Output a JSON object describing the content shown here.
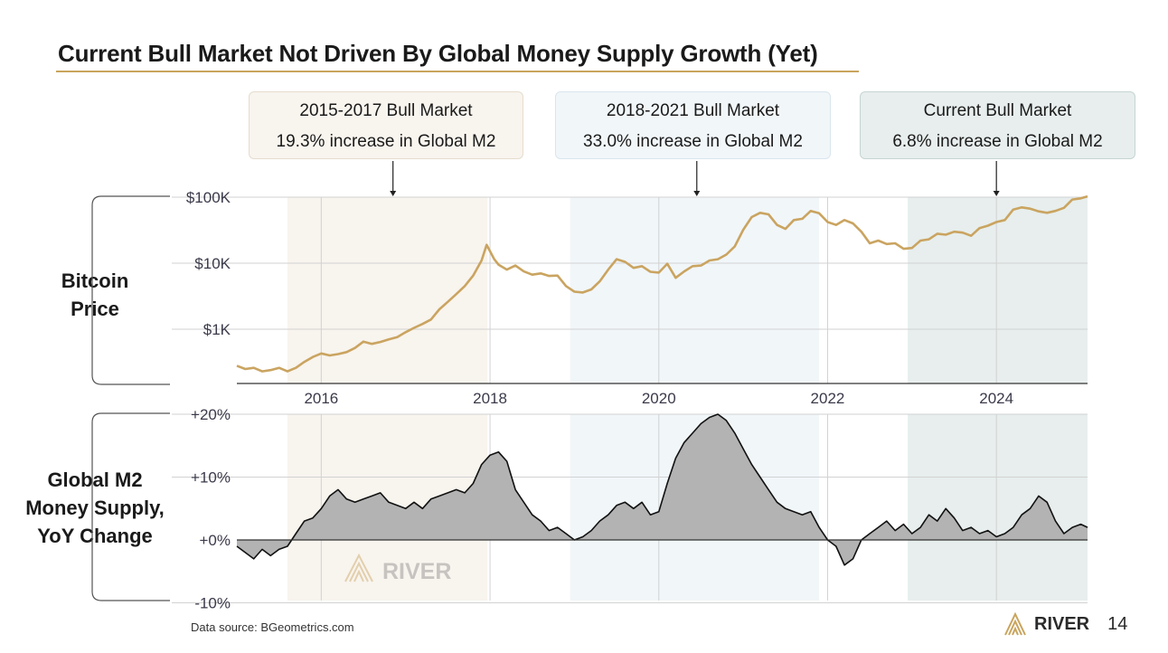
{
  "page": {
    "title": "Current Bull Market Not Driven By Global Money Supply Growth (Yet)",
    "source": "Data source: BGeometrics.com",
    "brand": "RIVER",
    "page_number": "14",
    "watermark": "RIVER",
    "side_label_top": [
      "Bitcoin",
      "Price"
    ],
    "side_label_bottom": [
      "Global M2",
      "Money Supply,",
      "YoY Change"
    ]
  },
  "callouts": [
    {
      "title": "2015-2017 Bull Market",
      "subtitle": "19.3% increase in Global M2",
      "anchor_date": 2016.85
    },
    {
      "title": "2018-2021 Bull Market",
      "subtitle": "33.0% increase in Global M2",
      "anchor_date": 2020.45
    },
    {
      "title": "Current Bull Market",
      "subtitle": "6.8% increase in Global M2",
      "anchor_date": 2024.0
    }
  ],
  "colors": {
    "brand_gold": "#c9a45d",
    "price_line": "#caa460",
    "m2_fill": "#b3b3b3",
    "m2_line": "#111111",
    "band1": "#f8f4ee",
    "band2": "#f1f6f9",
    "band3": "#e7eeed"
  },
  "chart_data": [
    {
      "type": "line",
      "name": "Bitcoin Price",
      "y_scale": "log",
      "y_ticks": [
        {
          "value": 1000,
          "label": "$1K"
        },
        {
          "value": 10000,
          "label": "$10K"
        },
        {
          "value": 100000,
          "label": "$100K"
        }
      ],
      "x_ticks": [
        {
          "value": 2016,
          "label": "2016"
        },
        {
          "value": 2018,
          "label": "2018"
        },
        {
          "value": 2020,
          "label": "2020"
        },
        {
          "value": 2022,
          "label": "2022"
        },
        {
          "value": 2024,
          "label": "2024"
        }
      ],
      "xlim": [
        2015.0,
        2025.08
      ],
      "ylim": [
        150,
        100000
      ],
      "shaded_periods": [
        [
          2015.6,
          2017.97
        ],
        [
          2018.95,
          2021.9
        ],
        [
          2022.95,
          2025.08
        ]
      ],
      "x": [
        2015.0,
        2015.1,
        2015.2,
        2015.3,
        2015.4,
        2015.5,
        2015.6,
        2015.7,
        2015.8,
        2015.9,
        2016.0,
        2016.1,
        2016.2,
        2016.3,
        2016.4,
        2016.5,
        2016.6,
        2016.7,
        2016.8,
        2016.9,
        2017.0,
        2017.1,
        2017.2,
        2017.3,
        2017.4,
        2017.5,
        2017.6,
        2017.7,
        2017.8,
        2017.9,
        2017.96,
        2018.05,
        2018.1,
        2018.2,
        2018.3,
        2018.4,
        2018.5,
        2018.6,
        2018.7,
        2018.8,
        2018.9,
        2019.0,
        2019.1,
        2019.2,
        2019.3,
        2019.4,
        2019.5,
        2019.6,
        2019.7,
        2019.8,
        2019.9,
        2020.0,
        2020.1,
        2020.2,
        2020.3,
        2020.4,
        2020.5,
        2020.6,
        2020.7,
        2020.8,
        2020.9,
        2021.0,
        2021.1,
        2021.2,
        2021.3,
        2021.4,
        2021.5,
        2021.6,
        2021.7,
        2021.8,
        2021.9,
        2022.0,
        2022.1,
        2022.2,
        2022.3,
        2022.4,
        2022.5,
        2022.6,
        2022.7,
        2022.8,
        2022.9,
        2023.0,
        2023.1,
        2023.2,
        2023.3,
        2023.4,
        2023.5,
        2023.6,
        2023.7,
        2023.8,
        2023.9,
        2024.0,
        2024.1,
        2024.2,
        2024.3,
        2024.4,
        2024.5,
        2024.6,
        2024.7,
        2024.8,
        2024.9,
        2025.0,
        2025.08
      ],
      "values": [
        280,
        250,
        260,
        230,
        240,
        260,
        230,
        260,
        320,
        380,
        430,
        400,
        420,
        450,
        520,
        650,
        600,
        640,
        700,
        760,
        900,
        1050,
        1200,
        1400,
        2000,
        2600,
        3400,
        4500,
        6500,
        11000,
        19000,
        11500,
        9500,
        8000,
        9200,
        7500,
        6700,
        7000,
        6400,
        6500,
        4500,
        3700,
        3600,
        4000,
        5300,
        8000,
        11500,
        10500,
        8500,
        9000,
        7400,
        7200,
        9800,
        6000,
        7500,
        9000,
        9200,
        11000,
        11500,
        13500,
        18000,
        32000,
        50000,
        58000,
        55000,
        38000,
        33000,
        45000,
        47000,
        62000,
        57000,
        42000,
        38000,
        45000,
        40000,
        30000,
        20000,
        22000,
        19500,
        20000,
        16500,
        17000,
        22000,
        23000,
        28000,
        27000,
        30000,
        29000,
        26000,
        34000,
        37000,
        42000,
        45000,
        65000,
        70000,
        67000,
        61000,
        58000,
        62000,
        69000,
        92000,
        96000,
        103000
      ]
    },
    {
      "type": "area",
      "name": "Global M2 Money Supply, YoY Change",
      "y_ticks": [
        {
          "value": -10,
          "label": "-10%"
        },
        {
          "value": 0,
          "label": "+0%"
        },
        {
          "value": 10,
          "label": "+10%"
        },
        {
          "value": 20,
          "label": "+20%"
        }
      ],
      "xlim": [
        2015.0,
        2025.08
      ],
      "ylim": [
        -10,
        20
      ],
      "shaded_periods": [
        [
          2015.6,
          2017.97
        ],
        [
          2018.95,
          2021.9
        ],
        [
          2022.95,
          2025.08
        ]
      ],
      "x": [
        2015.0,
        2015.1,
        2015.2,
        2015.3,
        2015.4,
        2015.5,
        2015.6,
        2015.7,
        2015.8,
        2015.9,
        2016.0,
        2016.1,
        2016.2,
        2016.3,
        2016.4,
        2016.5,
        2016.6,
        2016.7,
        2016.8,
        2016.9,
        2017.0,
        2017.1,
        2017.2,
        2017.3,
        2017.4,
        2017.5,
        2017.6,
        2017.7,
        2017.8,
        2017.9,
        2018.0,
        2018.1,
        2018.2,
        2018.3,
        2018.4,
        2018.5,
        2018.6,
        2018.7,
        2018.8,
        2018.9,
        2019.0,
        2019.1,
        2019.2,
        2019.3,
        2019.4,
        2019.5,
        2019.6,
        2019.7,
        2019.8,
        2019.9,
        2020.0,
        2020.1,
        2020.2,
        2020.3,
        2020.4,
        2020.5,
        2020.6,
        2020.7,
        2020.8,
        2020.9,
        2021.0,
        2021.1,
        2021.2,
        2021.3,
        2021.4,
        2021.5,
        2021.6,
        2021.7,
        2021.8,
        2021.9,
        2022.0,
        2022.1,
        2022.2,
        2022.3,
        2022.4,
        2022.5,
        2022.6,
        2022.7,
        2022.8,
        2022.9,
        2023.0,
        2023.1,
        2023.2,
        2023.3,
        2023.4,
        2023.5,
        2023.6,
        2023.7,
        2023.8,
        2023.9,
        2024.0,
        2024.1,
        2024.2,
        2024.3,
        2024.4,
        2024.5,
        2024.6,
        2024.7,
        2024.8,
        2024.9,
        2025.0,
        2025.08
      ],
      "values": [
        -1,
        -2,
        -3,
        -1.5,
        -2.5,
        -1.5,
        -1,
        1,
        3,
        3.5,
        5,
        7,
        8,
        6.5,
        6,
        6.5,
        7,
        7.5,
        6,
        5.5,
        5,
        6,
        5,
        6.5,
        7,
        7.5,
        8,
        7.5,
        9,
        12,
        13.5,
        14,
        12.5,
        8,
        6,
        4,
        3,
        1.5,
        2,
        1,
        0,
        0.5,
        1.5,
        3,
        4,
        5.5,
        6,
        5,
        6,
        4,
        4.5,
        9,
        13,
        15.5,
        17,
        18.5,
        19.5,
        20,
        19,
        17,
        14.5,
        12,
        10,
        8,
        6,
        5,
        4.5,
        4,
        4.5,
        2,
        0,
        -1,
        -4,
        -3,
        0,
        1,
        2,
        3,
        1.5,
        2.5,
        1,
        2,
        4,
        3,
        5,
        3.5,
        1.5,
        2,
        1,
        1.5,
        0.5,
        1,
        2,
        4,
        5,
        7,
        6,
        3,
        1,
        2,
        2.5,
        2
      ]
    }
  ]
}
